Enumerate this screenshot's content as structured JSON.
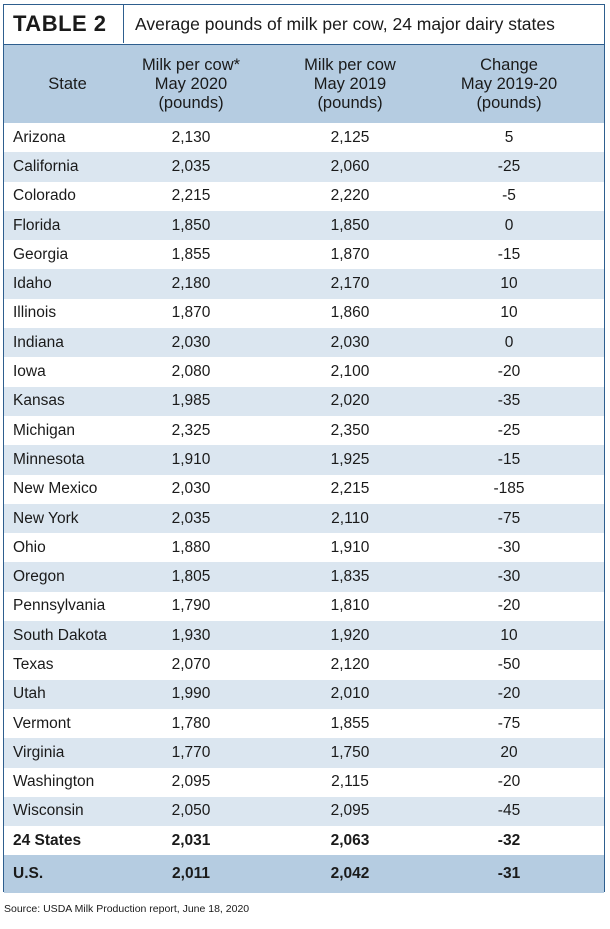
{
  "title": {
    "label": "TABLE 2",
    "text": "Average pounds of milk per cow, 24 major dairy states"
  },
  "columns": [
    {
      "lines": [
        "State"
      ]
    },
    {
      "lines": [
        "Milk per cow*",
        "May 2020",
        "(pounds)"
      ]
    },
    {
      "lines": [
        "Milk per cow",
        "May 2019",
        "(pounds)"
      ]
    },
    {
      "lines": [
        "Change",
        "May 2019-20",
        "(pounds)"
      ]
    }
  ],
  "rows": [
    {
      "state": "Arizona",
      "may2020": "2,130",
      "may2019": "2,125",
      "change": "5"
    },
    {
      "state": "California",
      "may2020": "2,035",
      "may2019": "2,060",
      "change": "-25"
    },
    {
      "state": "Colorado",
      "may2020": "2,215",
      "may2019": "2,220",
      "change": "-5"
    },
    {
      "state": "Florida",
      "may2020": "1,850",
      "may2019": "1,850",
      "change": "0"
    },
    {
      "state": "Georgia",
      "may2020": "1,855",
      "may2019": "1,870",
      "change": "-15"
    },
    {
      "state": "Idaho",
      "may2020": "2,180",
      "may2019": "2,170",
      "change": "10"
    },
    {
      "state": "Illinois",
      "may2020": "1,870",
      "may2019": "1,860",
      "change": "10"
    },
    {
      "state": "Indiana",
      "may2020": "2,030",
      "may2019": "2,030",
      "change": "0"
    },
    {
      "state": "Iowa",
      "may2020": "2,080",
      "may2019": "2,100",
      "change": "-20"
    },
    {
      "state": "Kansas",
      "may2020": "1,985",
      "may2019": "2,020",
      "change": "-35"
    },
    {
      "state": "Michigan",
      "may2020": "2,325",
      "may2019": "2,350",
      "change": "-25"
    },
    {
      "state": "Minnesota",
      "may2020": "1,910",
      "may2019": "1,925",
      "change": "-15"
    },
    {
      "state": "New Mexico",
      "may2020": "2,030",
      "may2019": "2,215",
      "change": "-185"
    },
    {
      "state": "New York",
      "may2020": "2,035",
      "may2019": "2,110",
      "change": "-75"
    },
    {
      "state": "Ohio",
      "may2020": "1,880",
      "may2019": "1,910",
      "change": "-30"
    },
    {
      "state": "Oregon",
      "may2020": "1,805",
      "may2019": "1,835",
      "change": "-30"
    },
    {
      "state": "Pennsylvania",
      "may2020": "1,790",
      "may2019": "1,810",
      "change": "-20"
    },
    {
      "state": "South Dakota",
      "may2020": "1,930",
      "may2019": "1,920",
      "change": "10"
    },
    {
      "state": "Texas",
      "may2020": "2,070",
      "may2019": "2,120",
      "change": "-50"
    },
    {
      "state": "Utah",
      "may2020": "1,990",
      "may2019": "2,010",
      "change": "-20"
    },
    {
      "state": "Vermont",
      "may2020": "1,780",
      "may2019": "1,855",
      "change": "-75"
    },
    {
      "state": "Virginia",
      "may2020": "1,770",
      "may2019": "1,750",
      "change": "20"
    },
    {
      "state": "Washington",
      "may2020": "2,095",
      "may2019": "2,115",
      "change": "-20"
    },
    {
      "state": "Wisconsin",
      "may2020": "2,050",
      "may2019": "2,095",
      "change": "-45"
    },
    {
      "state": "24 States",
      "may2020": "2,031",
      "may2019": "2,063",
      "change": "-32"
    },
    {
      "state": "U.S.",
      "may2020": "2,011",
      "may2019": "2,042",
      "change": "-31"
    }
  ],
  "source": "Source: USDA Milk Production report, June 18, 2020",
  "colors": {
    "border": "#2e5e8e",
    "header_fill": "#b5cce1",
    "alt_row_fill": "#dbe6f0"
  }
}
